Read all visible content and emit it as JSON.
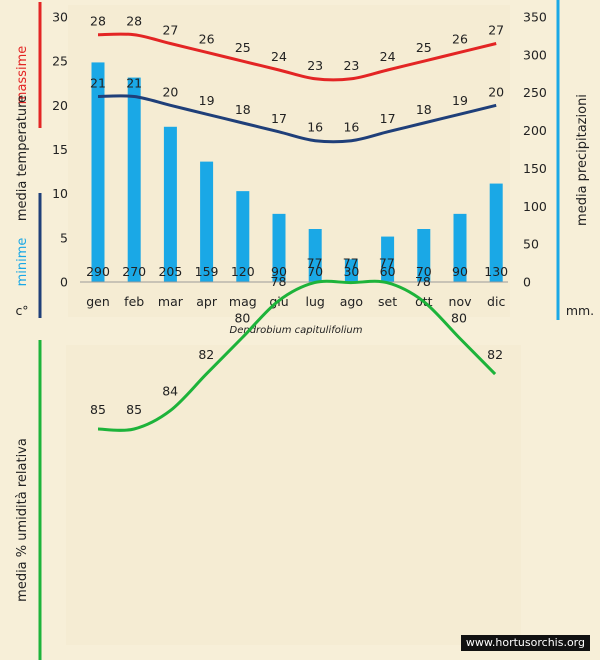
{
  "caption": "Dendrobium capitulifolium",
  "credit": "www.hortusorchis.org",
  "colors": {
    "max": "#e32524",
    "min": "#1f3f79",
    "precip": "#1aa8e6",
    "humidity": "#1db33a",
    "background": "#f7efd8"
  },
  "chart_data": [
    {
      "type": "bar",
      "categories": [
        "gen",
        "feb",
        "mar",
        "apr",
        "mag",
        "giu",
        "lug",
        "ago",
        "set",
        "ott",
        "nov",
        "dic"
      ],
      "series": [
        {
          "name": "massime",
          "type": "line",
          "axis": "left",
          "values": [
            28,
            28,
            27,
            26,
            25,
            24,
            23,
            23,
            24,
            25,
            26,
            27
          ]
        },
        {
          "name": "minime",
          "type": "line",
          "axis": "left",
          "values": [
            21,
            21,
            20,
            19,
            18,
            17,
            16,
            16,
            17,
            18,
            19,
            20
          ]
        },
        {
          "name": "precipitazioni",
          "type": "bar",
          "axis": "right",
          "values": [
            290,
            270,
            205,
            159,
            120,
            90,
            70,
            30,
            60,
            70,
            90,
            130
          ]
        }
      ],
      "left_axis": {
        "label_top": "massime",
        "label_mid": "media temperature",
        "label_bottom": "minime",
        "unit": "c°",
        "ticks": [
          0,
          5,
          10,
          15,
          20,
          25,
          30
        ],
        "ylim": [
          0,
          30
        ]
      },
      "right_axis": {
        "label": "media precipitazioni",
        "unit": "mm.",
        "ticks": [
          0,
          50,
          100,
          150,
          200,
          250,
          300,
          350
        ],
        "ylim": [
          0,
          350
        ]
      }
    },
    {
      "type": "line",
      "series": [
        {
          "name": "umidità relativa",
          "values": [
            85,
            85,
            84,
            82,
            80,
            78,
            77,
            77,
            77,
            78,
            80,
            82
          ]
        }
      ],
      "ylabel": "media % umidità relativa"
    }
  ]
}
